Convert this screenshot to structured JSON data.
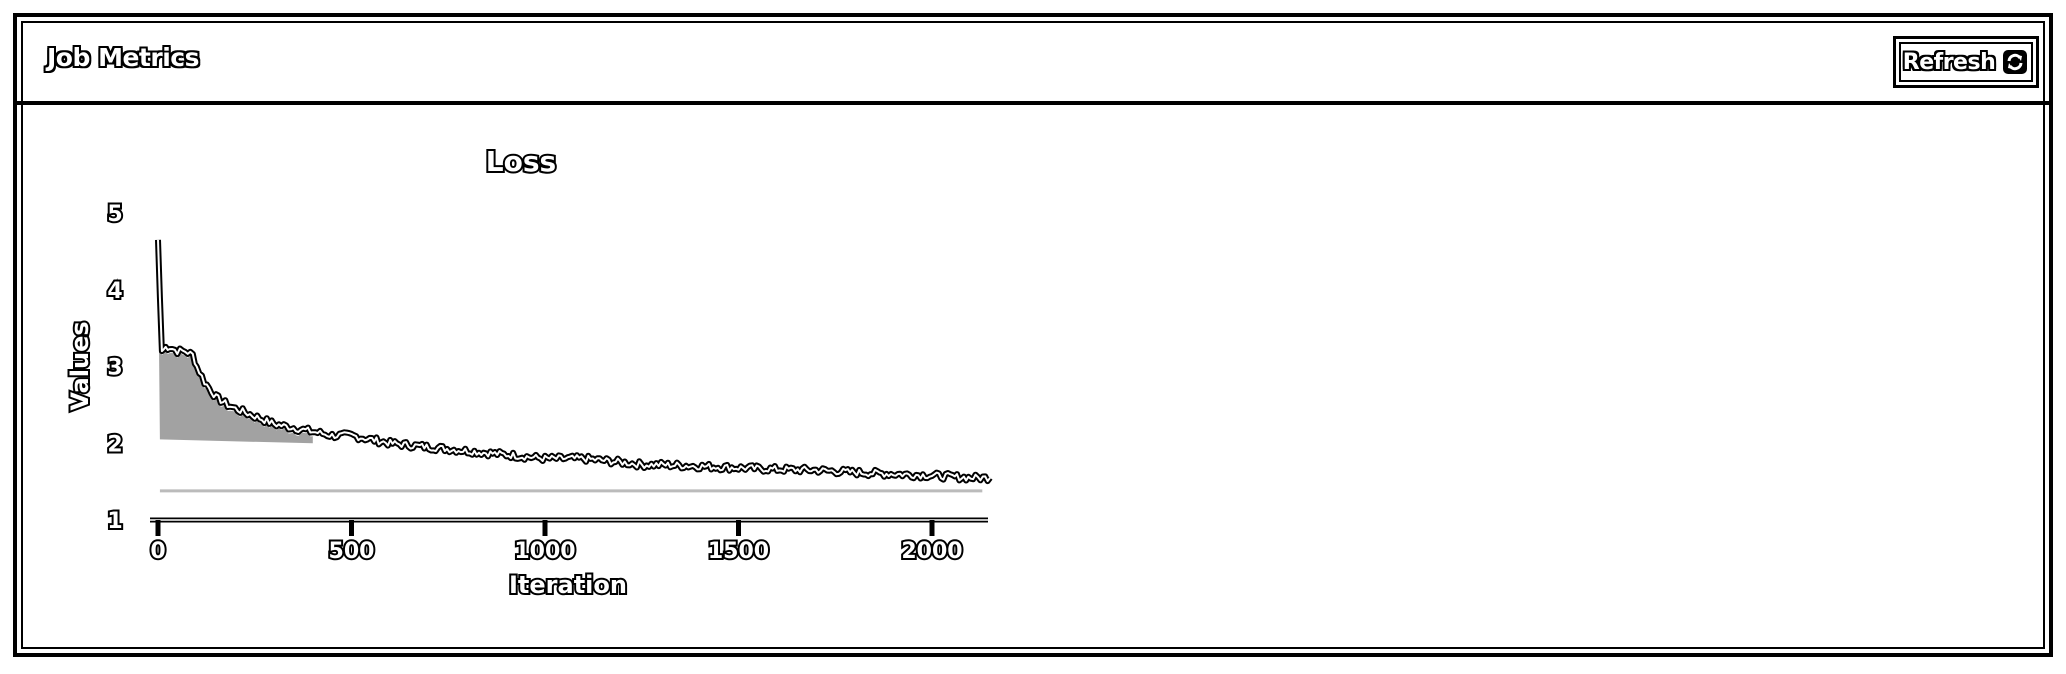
{
  "header": {
    "title": "Job Metrics",
    "refresh_label": "Refresh",
    "refresh_icon": "refresh-icon"
  },
  "chart_data": {
    "type": "line",
    "title": "Loss",
    "xlabel": "Iteration",
    "ylabel": "Values",
    "xlim": [
      0,
      2150
    ],
    "ylim": [
      1,
      5
    ],
    "xticks": [
      0,
      500,
      1000,
      1500,
      2000
    ],
    "yticks": [
      1,
      2,
      3,
      4,
      5
    ],
    "grid": false,
    "series": [
      {
        "x": [
          0,
          5,
          10,
          20,
          30,
          50,
          70,
          90,
          100,
          120,
          150,
          180,
          200,
          250,
          300,
          350,
          400,
          450,
          500,
          600,
          700,
          800,
          900,
          1000,
          1100,
          1200,
          1250,
          1300,
          1400,
          1500,
          1600,
          1700,
          1800,
          1900,
          2000,
          2100,
          2150
        ],
        "y": [
          4.65,
          3.9,
          3.2,
          3.25,
          3.25,
          3.2,
          3.2,
          3.15,
          3.0,
          2.8,
          2.6,
          2.5,
          2.45,
          2.35,
          2.25,
          2.2,
          2.15,
          2.1,
          2.1,
          2.0,
          1.95,
          1.9,
          1.85,
          1.8,
          1.8,
          1.75,
          1.72,
          1.72,
          1.7,
          1.68,
          1.66,
          1.65,
          1.62,
          1.6,
          1.58,
          1.55,
          1.55
        ]
      }
    ]
  }
}
